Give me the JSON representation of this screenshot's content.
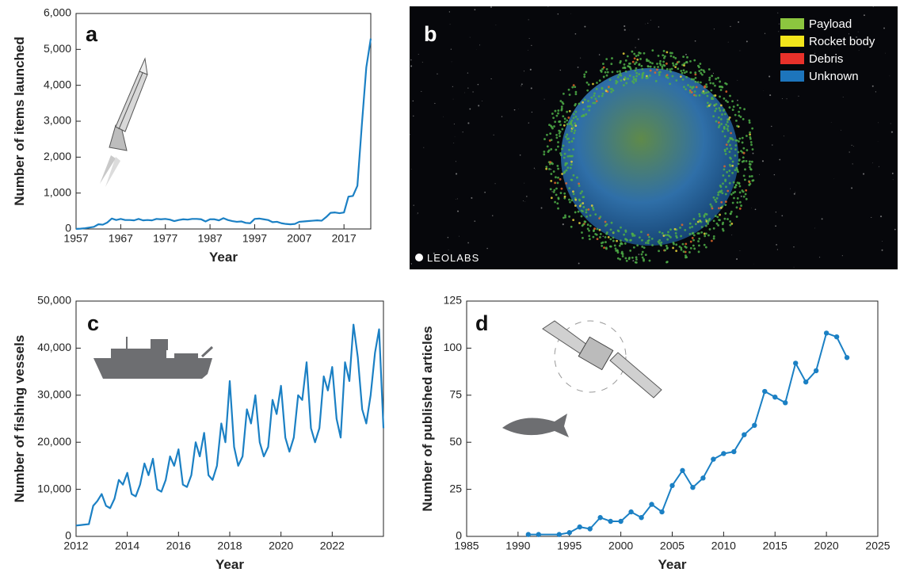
{
  "chart_data": [
    {
      "type": "line",
      "label": "a",
      "xlabel": "Year",
      "ylabel": "Number of items launched",
      "color": "#1b80c4",
      "x": [
        1957,
        1958,
        1959,
        1960,
        1961,
        1962,
        1963,
        1964,
        1965,
        1966,
        1967,
        1968,
        1969,
        1970,
        1971,
        1972,
        1973,
        1974,
        1975,
        1976,
        1977,
        1978,
        1979,
        1980,
        1981,
        1982,
        1983,
        1984,
        1985,
        1986,
        1987,
        1988,
        1989,
        1990,
        1991,
        1992,
        1993,
        1994,
        1995,
        1996,
        1997,
        1998,
        1999,
        2000,
        2001,
        2002,
        2003,
        2004,
        2005,
        2006,
        2007,
        2008,
        2009,
        2010,
        2011,
        2012,
        2013,
        2014,
        2015,
        2016,
        2017,
        2018,
        2019,
        2020,
        2021,
        2022,
        2023
      ],
      "values": [
        2,
        8,
        20,
        40,
        60,
        130,
        120,
        180,
        290,
        250,
        280,
        250,
        250,
        240,
        280,
        240,
        250,
        240,
        280,
        270,
        280,
        260,
        220,
        250,
        270,
        260,
        280,
        280,
        270,
        210,
        270,
        270,
        240,
        300,
        250,
        220,
        200,
        210,
        170,
        160,
        280,
        290,
        270,
        250,
        190,
        200,
        160,
        140,
        130,
        140,
        200,
        210,
        220,
        230,
        240,
        230,
        330,
        450,
        460,
        440,
        460,
        900,
        920,
        1200,
        2900,
        4500,
        5300
      ],
      "xlim": [
        1957,
        2023
      ],
      "ylim": [
        0,
        6000
      ],
      "xticks": [
        1957,
        1967,
        1977,
        1987,
        1997,
        2007,
        2017
      ],
      "yticks": [
        0,
        {
          "value": 1000,
          "label": "1,000"
        },
        {
          "value": 2000,
          "label": "2,000"
        },
        {
          "value": 3000,
          "label": "3,000"
        },
        {
          "value": 4000,
          "label": "4,000"
        },
        {
          "value": 5000,
          "label": "5,000"
        },
        {
          "value": 6000,
          "label": "6,000"
        }
      ]
    },
    {
      "type": "image",
      "label": "b",
      "credit": "LEOLABS",
      "legend": [
        {
          "name": "Payload",
          "color": "#8cc63f"
        },
        {
          "name": "Rocket body",
          "color": "#f2e51b"
        },
        {
          "name": "Debris",
          "color": "#e8312a"
        },
        {
          "name": "Unknown",
          "color": "#1d75bc"
        }
      ]
    },
    {
      "type": "line",
      "label": "c",
      "xlabel": "Year",
      "ylabel": "Number of fishing vessels",
      "color": "#1b80c4",
      "x": [
        2012,
        2012.17,
        2012.33,
        2012.5,
        2012.67,
        2012.83,
        2013,
        2013.17,
        2013.33,
        2013.5,
        2013.67,
        2013.83,
        2014,
        2014.17,
        2014.33,
        2014.5,
        2014.67,
        2014.83,
        2015,
        2015.17,
        2015.33,
        2015.5,
        2015.67,
        2015.83,
        2016,
        2016.17,
        2016.33,
        2016.5,
        2016.67,
        2016.83,
        2017,
        2017.17,
        2017.33,
        2017.5,
        2017.67,
        2017.83,
        2018,
        2018.17,
        2018.33,
        2018.5,
        2018.67,
        2018.83,
        2019,
        2019.17,
        2019.33,
        2019.5,
        2019.67,
        2019.83,
        2020,
        2020.17,
        2020.33,
        2020.5,
        2020.67,
        2020.83,
        2021,
        2021.17,
        2021.33,
        2021.5,
        2021.67,
        2021.83,
        2022,
        2022.17,
        2022.33,
        2022.5,
        2022.67,
        2022.83,
        2023,
        2023.17,
        2023.33,
        2023.5,
        2023.67,
        2023.83,
        2024
      ],
      "values": [
        2300,
        2400,
        2500,
        2600,
        6500,
        7500,
        9000,
        6500,
        6000,
        8000,
        12000,
        11000,
        13500,
        9000,
        8500,
        11000,
        15500,
        13000,
        16500,
        10000,
        9500,
        12000,
        17000,
        15000,
        18500,
        11000,
        10500,
        13000,
        20000,
        17000,
        22000,
        13000,
        12000,
        15000,
        24000,
        20000,
        33000,
        19000,
        15000,
        17000,
        27000,
        24000,
        30000,
        20000,
        17000,
        19000,
        29000,
        26000,
        32000,
        21000,
        18000,
        21000,
        30000,
        29000,
        37000,
        23000,
        20000,
        23000,
        34000,
        31000,
        36000,
        25000,
        21000,
        37000,
        33000,
        45000,
        38000,
        27000,
        24000,
        30000,
        39000,
        44000,
        23000
      ],
      "xlim": [
        2012,
        2024
      ],
      "ylim": [
        0,
        50000
      ],
      "xticks": [
        2012,
        2014,
        2016,
        2018,
        2020,
        2022
      ],
      "yticks": [
        0,
        {
          "value": 10000,
          "label": "10,000"
        },
        {
          "value": 20000,
          "label": "20,000"
        },
        {
          "value": 30000,
          "label": "30,000"
        },
        {
          "value": 40000,
          "label": "40,000"
        },
        {
          "value": 50000,
          "label": "50,000"
        }
      ]
    },
    {
      "type": "line",
      "label": "d",
      "xlabel": "Year",
      "ylabel": "Number of published articles",
      "color": "#1b80c4",
      "markers": true,
      "x": [
        1991,
        1992,
        1994,
        1995,
        1996,
        1997,
        1998,
        1999,
        2000,
        2001,
        2002,
        2003,
        2004,
        2005,
        2006,
        2007,
        2008,
        2009,
        2010,
        2011,
        2012,
        2013,
        2014,
        2015,
        2016,
        2017,
        2018,
        2019,
        2020,
        2021,
        2022
      ],
      "values": [
        1,
        1,
        1,
        2,
        5,
        4,
        10,
        8,
        8,
        13,
        10,
        17,
        13,
        27,
        35,
        26,
        31,
        41,
        44,
        45,
        54,
        59,
        77,
        74,
        71,
        92,
        82,
        88,
        108,
        106,
        95
      ],
      "xlim": [
        1985,
        2025
      ],
      "ylim": [
        0,
        125
      ],
      "xticks": [
        1985,
        1990,
        1995,
        2000,
        2005,
        2010,
        2015,
        2020,
        2025
      ],
      "yticks": [
        0,
        25,
        50,
        75,
        100,
        125
      ]
    }
  ]
}
